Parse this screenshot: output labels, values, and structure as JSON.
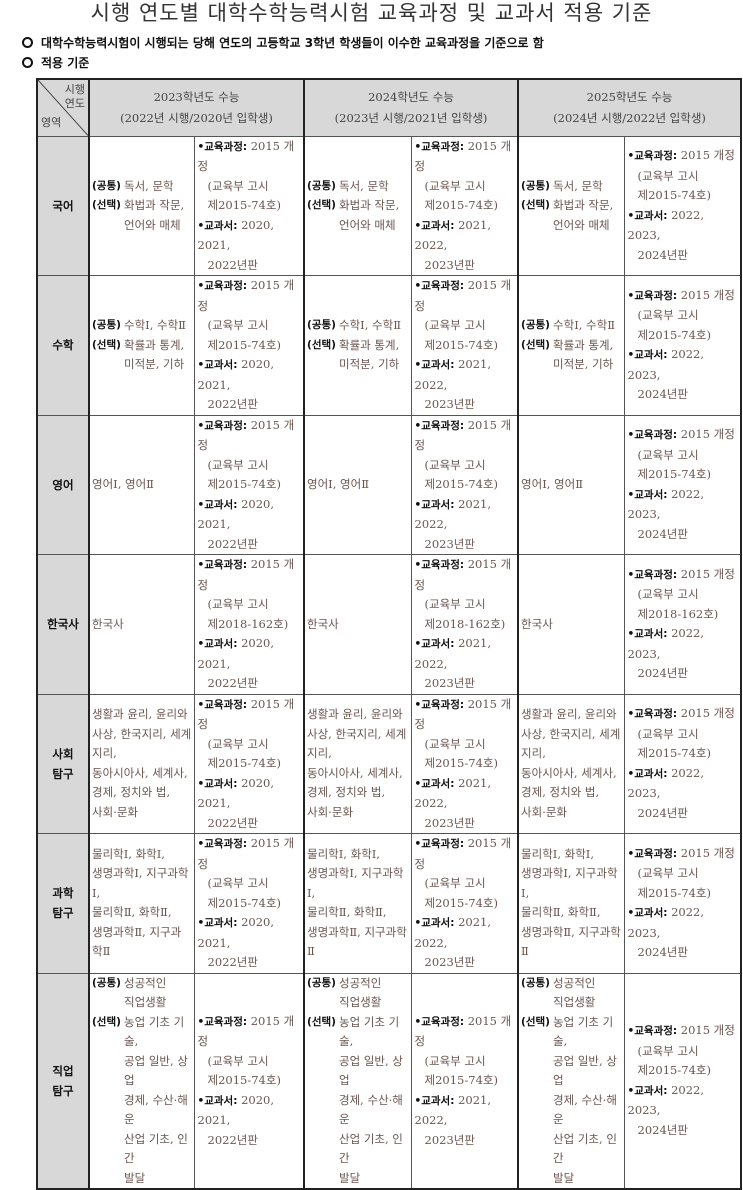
{
  "title": "시행 연도별 대학수학능력시험 교육과정 및 교과서 적용 기준",
  "notes": [
    "대학수학능력시험이 시행되는 당해 연도의 고등학교 3학년 학생들이 이수한 교육과정을 기준으로 함",
    "적용 기준"
  ],
  "corner": {
    "top": [
      "시행",
      "연도"
    ],
    "bottom": "영역"
  },
  "years": [
    {
      "title": "2023학년도 수능",
      "sub": "(2022년 시행/2020년 입학생)"
    },
    {
      "title": "2024학년도 수능",
      "sub": "(2023년 시행/2021년 입학생)"
    },
    {
      "title": "2025학년도 수능",
      "sub": "(2024년 시행/2022년 입학생)"
    }
  ],
  "bullet": "•",
  "curriculum_label": "교육과정:",
  "textbook_label": "교과서:",
  "textbooks": [
    [
      "2020, 2021,",
      "2022년판"
    ],
    [
      "2021, 2022,",
      "2023년판"
    ],
    [
      "2022, 2023,",
      "2024년판"
    ]
  ],
  "rows": [
    {
      "area": [
        "국어"
      ],
      "subjects": [
        {
          "label": "(공통)",
          "lines": [
            "독서, 문학"
          ]
        },
        {
          "label": "(선택)",
          "lines": [
            "화법과 작문,",
            "언어와 매체"
          ]
        }
      ],
      "curriculum": "2015 개정",
      "notice": [
        "(교육부  고시",
        "제2015-74호)"
      ]
    },
    {
      "area": [
        "수학"
      ],
      "subjects": [
        {
          "label": "(공통)",
          "lines": [
            "수학Ⅰ, 수학Ⅱ"
          ]
        },
        {
          "label": "(선택)",
          "lines": [
            "확률과 통계,",
            "미적분, 기하"
          ]
        }
      ],
      "curriculum": "2015 개정",
      "notice": [
        "(교육부  고시",
        "제2015-74호)"
      ]
    },
    {
      "area": [
        "영어"
      ],
      "subjects": [
        {
          "label": "",
          "lines": [
            "영어Ⅰ, 영어Ⅱ"
          ]
        }
      ],
      "curriculum": "2015 개정",
      "notice": [
        "(교육부  고시",
        "제2015-74호)"
      ]
    },
    {
      "area": [
        "한국사"
      ],
      "subjects": [
        {
          "label": "",
          "lines": [
            "한국사"
          ]
        }
      ],
      "curriculum": "2015 개정",
      "notice": [
        "(교육부 고시",
        "제2018-162호)"
      ]
    },
    {
      "area": [
        "사회",
        "탐구"
      ],
      "subjects": [
        {
          "label": "",
          "lines": [
            "생활과 윤리, 윤리와",
            "사상, 한국지리, 세계지리,",
            "동아시아사, 세계사,",
            "경제, 정치와 법,",
            "사회·문화"
          ]
        }
      ],
      "curriculum": "2015 개정",
      "notice": [
        "(교육부  고시",
        "제2015-74호)"
      ]
    },
    {
      "area": [
        "과학",
        "탐구"
      ],
      "subjects": [
        {
          "label": "",
          "lines": [
            "물리학Ⅰ, 화학Ⅰ,",
            "생명과학Ⅰ, 지구과학Ⅰ,",
            "물리학Ⅱ, 화학Ⅱ,",
            "생명과학Ⅱ, 지구과학Ⅱ"
          ]
        }
      ],
      "curriculum": "2015 개정",
      "notice": [
        "(교육부  고시",
        "제2015-74호)"
      ]
    },
    {
      "area": [
        "직업",
        "탐구"
      ],
      "subjects": [
        {
          "label": "(공통)",
          "lines": [
            "성공적인",
            "직업생활"
          ]
        },
        {
          "label": "(선택)",
          "lines": [
            "농업 기초 기술,",
            "공업 일반, 상업",
            "경제, 수산·해운",
            "산업 기초, 인간",
            "발달"
          ]
        }
      ],
      "curriculum": "2015 개정",
      "notice": [
        "(교육부  고시",
        "제2015-74호)"
      ]
    }
  ]
}
